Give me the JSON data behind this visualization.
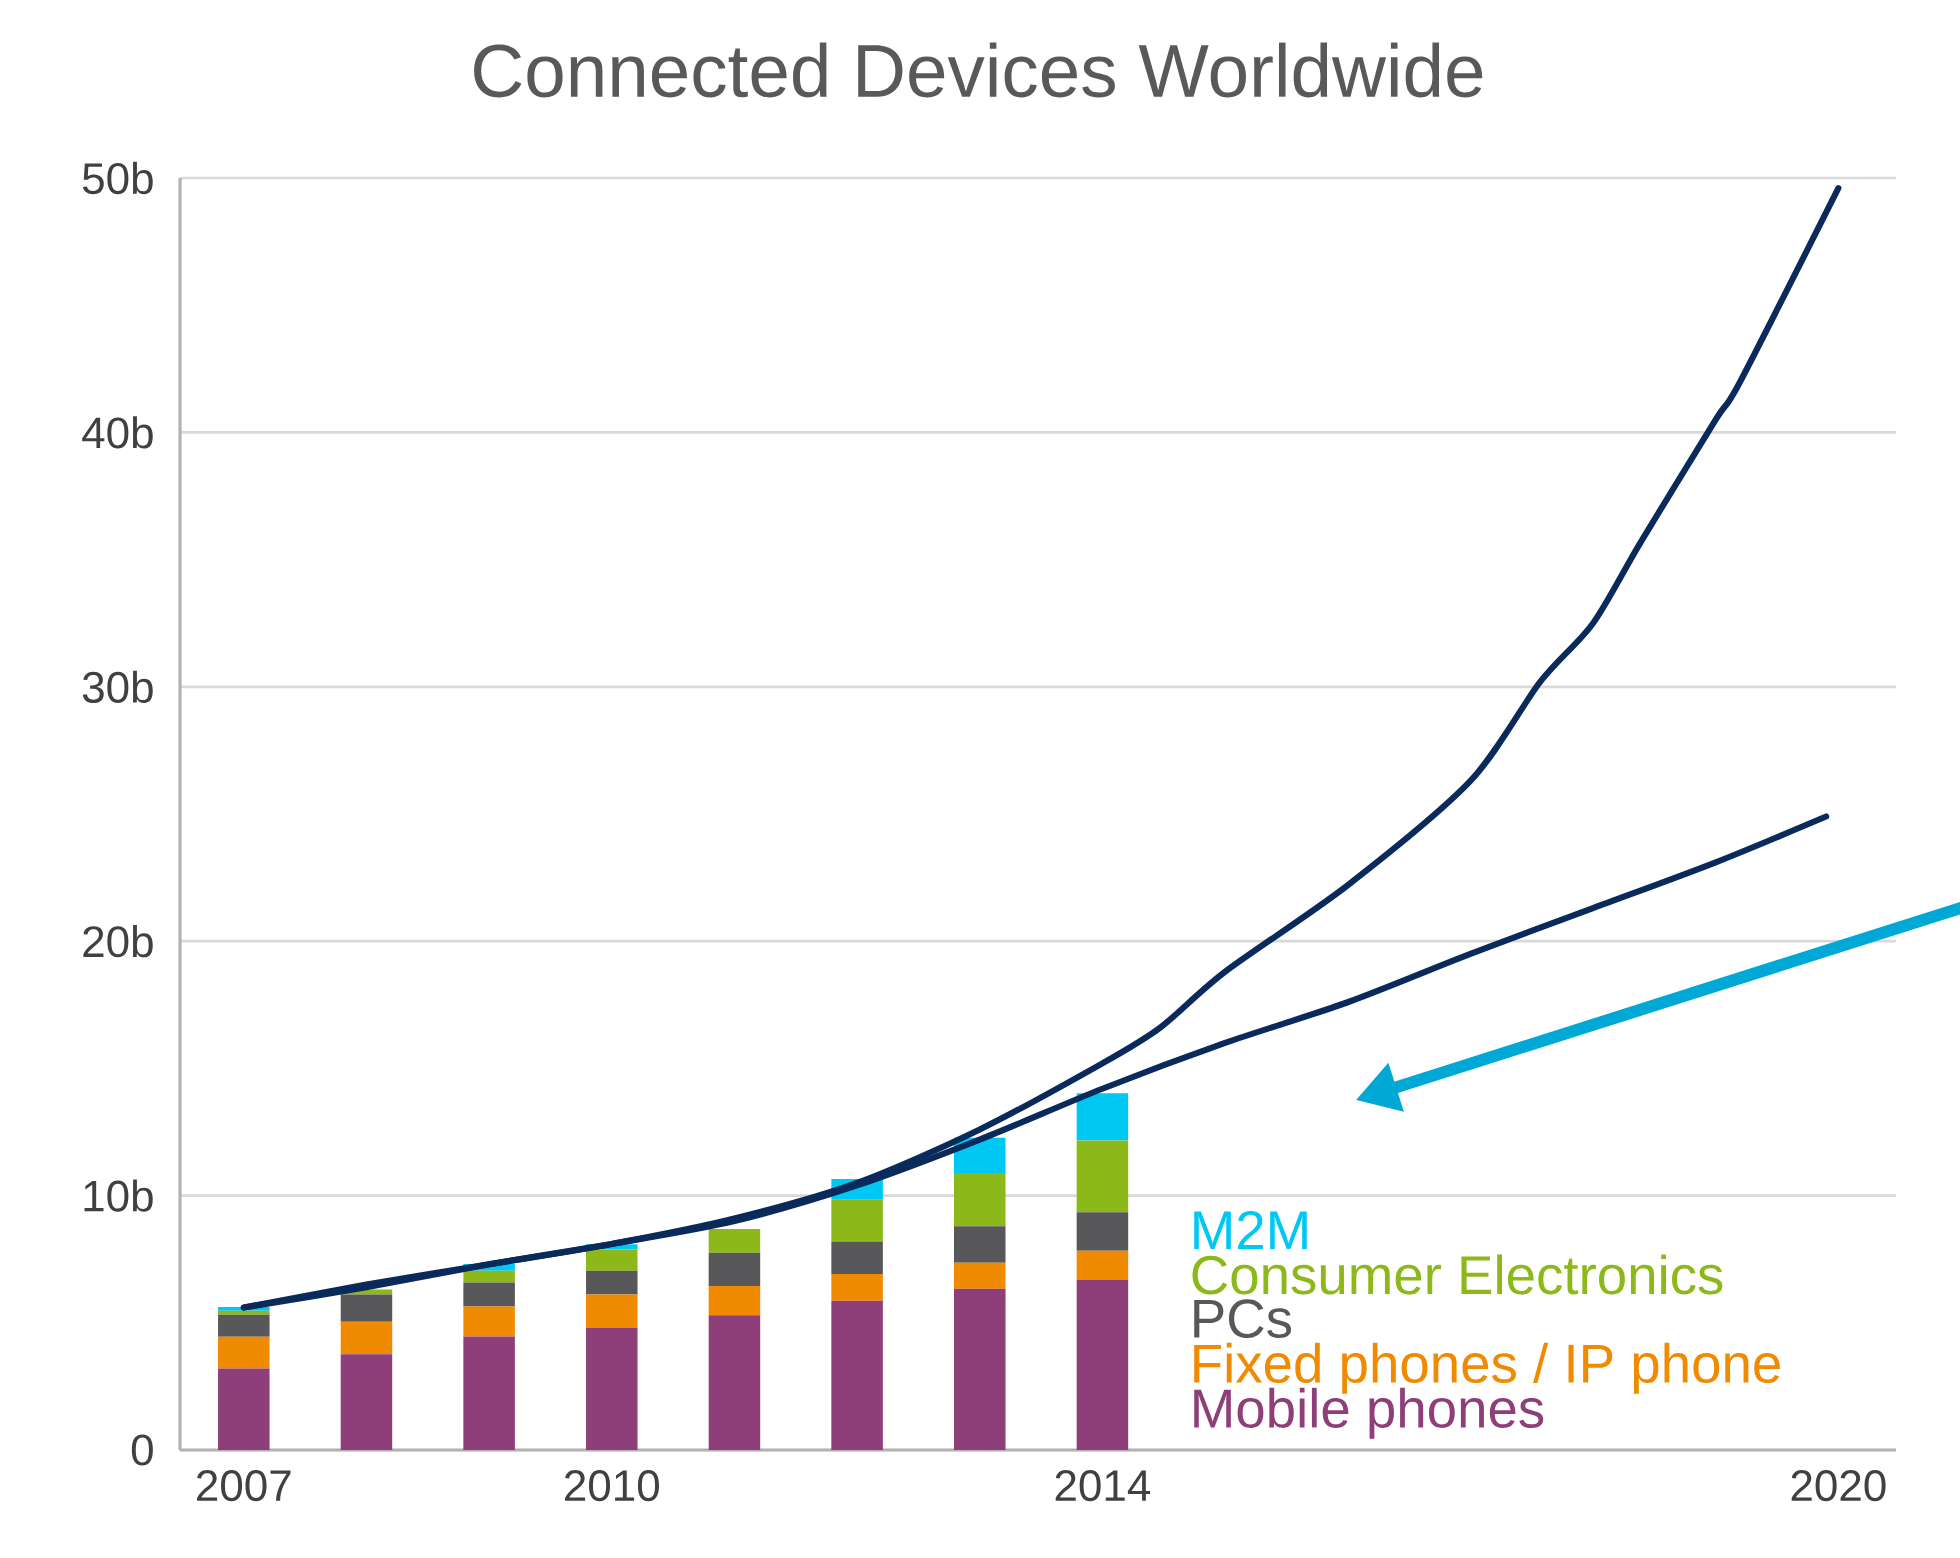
{
  "chart_data": {
    "type": "bar",
    "title": "Connected Devices Worldwide",
    "stacked": true,
    "grid": "y",
    "legend": "bottom right",
    "x": [
      2007,
      2008,
      2009,
      2010,
      2011,
      2012,
      2013,
      2014
    ],
    "xlim": [
      2006.48,
      2020.47
    ],
    "xticks": [
      2007,
      2010,
      2014,
      2020
    ],
    "ylim": [
      0,
      50
    ],
    "yticks": [
      0,
      {
        "value": 10,
        "label": "10b"
      },
      {
        "value": 20,
        "label": "20b"
      },
      {
        "value": 30,
        "label": "30b"
      },
      {
        "value": 40,
        "label": "40b"
      },
      {
        "value": 50,
        "label": "50b"
      }
    ],
    "series": [
      {
        "name": "Mobile phones",
        "color": "#8e3f7a",
        "values": [
          3.2,
          3.76,
          4.46,
          4.8,
          5.3,
          5.87,
          6.34,
          6.68
        ]
      },
      {
        "name": "Fixed phones / IP phone",
        "color": "#f08a00",
        "values": [
          1.25,
          1.28,
          1.18,
          1.31,
          1.15,
          1.05,
          1.02,
          1.15
        ]
      },
      {
        "name": "PCs",
        "color": "#58585a",
        "values": [
          0.87,
          1.07,
          0.94,
          0.94,
          1.3,
          1.28,
          1.44,
          1.52
        ]
      },
      {
        "name": "Consumer Electronics",
        "color": "#8cb81a",
        "values": [
          0.15,
          0.2,
          0.47,
          0.83,
          0.94,
          1.64,
          2.09,
          2.82
        ]
      },
      {
        "name": "M2M",
        "color": "#00c8f5",
        "values": [
          0.15,
          null,
          0.26,
          0.21,
          null,
          0.81,
          1.38,
          1.85
        ]
      },
      {
        "type": "line",
        "color": "#0a2a5c",
        "x": [
          2007,
          2008,
          2009,
          2010,
          2011,
          2012,
          2013,
          2014,
          2014.47,
          2015,
          2016,
          2017,
          2017.57,
          2018,
          2018.39,
          2019,
          2019.2,
          2020
        ],
        "values": [
          5.6,
          6.5,
          7.3,
          8.1,
          9.1,
          10.5,
          12.6,
          15.2,
          16.6,
          18.8,
          22.2,
          26.3,
          30.2,
          32.5,
          35.7,
          40.5,
          42.0,
          49.6
        ]
      },
      {
        "type": "line",
        "color": "#0a2a5c",
        "x": [
          2007,
          2008,
          2009,
          2010,
          2011,
          2012,
          2013,
          2014,
          2015,
          2016,
          2017,
          2018,
          2019,
          2019.9
        ],
        "values": [
          5.6,
          6.4,
          7.3,
          8.1,
          9.0,
          10.4,
          12.2,
          14.2,
          16.0,
          17.6,
          19.5,
          21.3,
          23.1,
          24.9
        ]
      }
    ]
  }
}
